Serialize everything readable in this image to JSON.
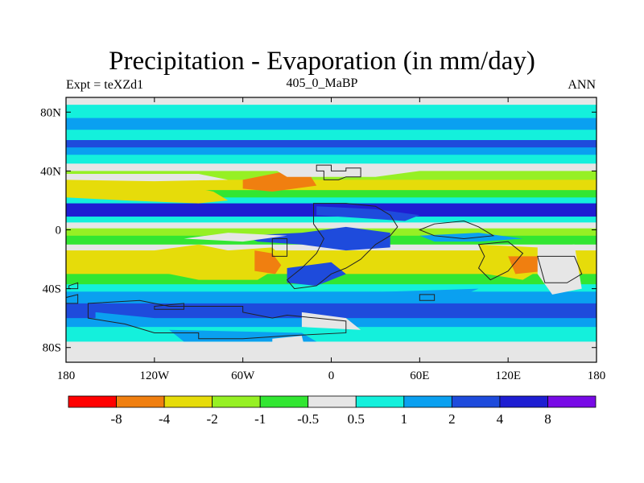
{
  "chart_data": {
    "type": "heatmap",
    "title": "Precipitation - Evaporation (in mm/day)",
    "subtitle_left": "Expt = teXZd1",
    "subtitle_center": "405_0_MaBP",
    "subtitle_right": "ANN",
    "x_tick_labels": [
      "180",
      "120W",
      "60W",
      "0",
      "60E",
      "120E",
      "180"
    ],
    "x_tick_values": [
      -180,
      -120,
      -60,
      0,
      60,
      120,
      180
    ],
    "y_tick_labels": [
      "80N",
      "40N",
      "0",
      "40S",
      "80S"
    ],
    "y_tick_values": [
      80,
      40,
      0,
      -40,
      -80
    ],
    "xlim": [
      -180,
      180
    ],
    "ylim": [
      -90,
      90
    ],
    "colorbar": {
      "labels": [
        "-8",
        "-4",
        "-2",
        "-1",
        "-0.5",
        "0.5",
        "1",
        "2",
        "4",
        "8"
      ],
      "colors": [
        "#ff0000",
        "#f07f10",
        "#e6dc0a",
        "#96f024",
        "#32e632",
        "#e6e6e6",
        "#14f0dc",
        "#0aa0f0",
        "#1e4bdc",
        "#1e1ed2",
        "#780ae6"
      ]
    },
    "colors": {
      "land_outline": "#222222",
      "frame": "#000000"
    }
  }
}
